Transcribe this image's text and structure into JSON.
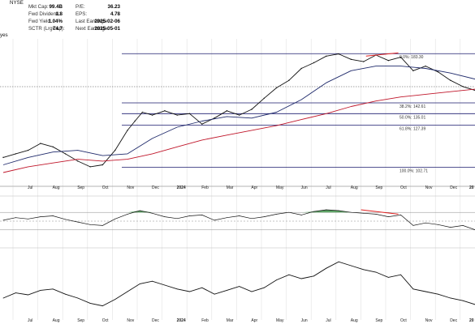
{
  "header": {
    "exchange": "NYSE",
    "left_fragment": "yes",
    "stats_left": [
      {
        "label": "Mkt Cap:",
        "value": "99.4B"
      },
      {
        "label": "Fwd Dividend:",
        "value": "1.8"
      },
      {
        "label": "Fwd Yield:",
        "value": "1.04%"
      },
      {
        "label": "SCTR (LrgCap):",
        "value": "74.7"
      }
    ],
    "stats_right": [
      {
        "label": "P/E:",
        "value": "36.23"
      },
      {
        "label": "EPS:",
        "value": "4.78"
      },
      {
        "label": "Last Earnings:",
        "value": "2025-02-06"
      },
      {
        "label": "Next Earnings:",
        "value": "2025-05-01"
      }
    ]
  },
  "colors": {
    "price": "#111111",
    "ma_short": "#1f2a6b",
    "ma_long": "#c0172b",
    "fib_line": "#1a1a6e",
    "trend_line": "#e02020",
    "rsi_overbought_fill": "#4c9a55",
    "grid": "#e2e2e2"
  },
  "chart_data": [
    {
      "type": "line",
      "panel": "price",
      "scale": "log",
      "x_tick_labels": [
        "Jul",
        "Aug",
        "Sep",
        "Oct",
        "Nov",
        "Dec",
        "2024",
        "Feb",
        "Mar",
        "Apr",
        "May",
        "Jun",
        "Jul",
        "Aug",
        "Sep",
        "Oct",
        "Nov",
        "Dec",
        "20"
      ],
      "year_ticks": [
        "2024",
        "20"
      ],
      "fibonacci": [
        {
          "label": "0.0%: 183.30",
          "value": 183.3
        },
        {
          "label": "38.2%: 142.61",
          "value": 142.61
        },
        {
          "label": "50.0%: 135.01",
          "value": 135.01
        },
        {
          "label": "61.8%: 127.39",
          "value": 127.39
        },
        {
          "label": "100.0%: 102.71",
          "value": 102.71
        }
      ],
      "series": [
        {
          "kind": "price",
          "x": [
            0,
            0.5,
            1,
            1.5,
            2,
            2.5,
            3,
            3.5,
            4,
            4.5,
            5,
            5.3,
            5.6,
            6,
            6.5,
            7,
            7.5,
            8,
            8.5,
            9,
            9.5,
            10,
            10.5,
            11,
            11.5,
            12,
            12.5,
            13,
            13.5,
            14,
            14.5,
            15,
            15.5,
            16,
            16.5,
            17,
            17.5,
            18,
            18.5,
            19
          ],
          "values": [
            108,
            110,
            112,
            116,
            114,
            110,
            106,
            103,
            104,
            112,
            124,
            130,
            136,
            134,
            137,
            134,
            135,
            128,
            132,
            137,
            134,
            138,
            146,
            154,
            160,
            170,
            175,
            181,
            183,
            178,
            176,
            182,
            177,
            180,
            168,
            172,
            167,
            160,
            155,
            152
          ]
        },
        {
          "kind": "ma_short",
          "x": [
            0,
            1,
            2,
            3,
            4,
            5,
            6,
            7,
            8,
            9,
            10,
            11,
            12,
            13,
            14,
            15,
            16,
            17,
            18,
            19
          ],
          "values": [
            104,
            108,
            111,
            112,
            109,
            110,
            119,
            126,
            130,
            133,
            132,
            136,
            145,
            158,
            168,
            172,
            172,
            170,
            166,
            161
          ]
        },
        {
          "kind": "ma_long",
          "x": [
            0,
            1,
            2,
            3,
            4,
            5,
            6,
            7,
            8,
            9,
            10,
            11,
            12,
            13,
            14,
            15,
            16,
            17,
            18,
            19
          ],
          "values": [
            100,
            103,
            105,
            107,
            106,
            107,
            110,
            114,
            118,
            121,
            124,
            127,
            131,
            135,
            140,
            144,
            147,
            149,
            151,
            153
          ]
        }
      ],
      "annotations": [
        {
          "kind": "trend_line",
          "from": [
            14.6,
            181
          ],
          "to": [
            15.9,
            184
          ]
        }
      ]
    },
    {
      "type": "line",
      "panel": "rsi",
      "ylim": [
        0,
        100
      ],
      "reference_lines": [
        70,
        50,
        30
      ],
      "x": [
        0,
        0.5,
        1,
        1.5,
        2,
        2.5,
        3,
        3.5,
        4,
        4.5,
        5,
        5.5,
        6,
        6.5,
        7,
        7.5,
        8,
        8.5,
        9,
        9.5,
        10,
        10.5,
        11,
        11.5,
        12,
        12.5,
        13,
        13.5,
        14,
        14.5,
        15,
        15.5,
        16,
        16.5,
        17,
        17.5,
        18,
        18.5,
        19
      ],
      "values": [
        52,
        58,
        55,
        60,
        62,
        54,
        48,
        42,
        40,
        55,
        66,
        74,
        68,
        60,
        56,
        62,
        64,
        52,
        58,
        62,
        56,
        60,
        66,
        70,
        64,
        72,
        76,
        74,
        70,
        68,
        66,
        60,
        64,
        40,
        46,
        42,
        36,
        40,
        30
      ],
      "annotations": [
        {
          "kind": "trend_line",
          "from": [
            14.4,
            76
          ],
          "to": [
            15.9,
            66
          ]
        }
      ]
    },
    {
      "type": "line",
      "panel": "indicator",
      "x": [
        0,
        0.5,
        1,
        1.5,
        2,
        2.5,
        3,
        3.5,
        4,
        4.5,
        5,
        5.5,
        6,
        6.5,
        7,
        7.5,
        8,
        8.5,
        9,
        9.5,
        10,
        10.5,
        11,
        11.5,
        12,
        12.5,
        13,
        13.5,
        14,
        14.5,
        15,
        15.5,
        16,
        16.5,
        17,
        17.5,
        18,
        18.5,
        19
      ],
      "values": [
        30,
        38,
        35,
        42,
        44,
        36,
        30,
        22,
        18,
        28,
        40,
        52,
        56,
        50,
        44,
        40,
        46,
        36,
        42,
        48,
        40,
        46,
        58,
        66,
        60,
        64,
        76,
        86,
        80,
        74,
        70,
        62,
        66,
        44,
        40,
        36,
        30,
        26,
        20
      ]
    }
  ]
}
